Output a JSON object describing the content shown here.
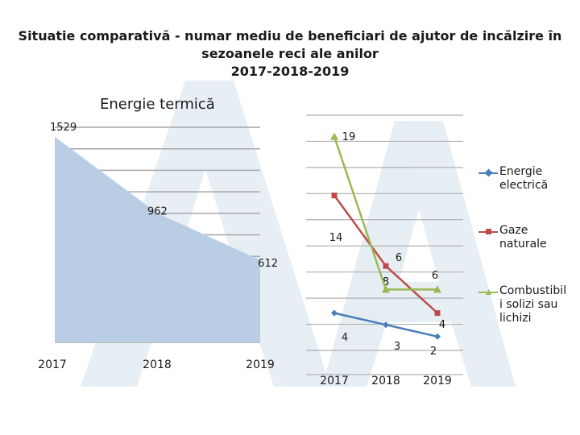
{
  "title_lines": [
    "Situatie comparativă - numar mediu de beneficiari de ajutor de incălzire în",
    "sezoanele reci ale anilor",
    "2017-2018-2019"
  ],
  "chart_data": [
    {
      "type": "area",
      "title": "Energie termică",
      "categories": [
        "2017",
        "2018",
        "2019"
      ],
      "series": [
        {
          "name": "Energie termică",
          "values": [
            1529,
            962,
            612
          ],
          "color": "#b9cde5"
        }
      ],
      "ylim": [
        0,
        1600
      ],
      "grid": true,
      "gridline_count": 11
    },
    {
      "type": "line",
      "categories": [
        "2017",
        "2018",
        "2019"
      ],
      "ylim": [
        0,
        20
      ],
      "grid": true,
      "legend_position": "right",
      "series": [
        {
          "name": "Energie electrică",
          "values": [
            4,
            3,
            2
          ],
          "labels": [
            "4",
            "3",
            "2"
          ],
          "color": "#4a7ebb",
          "marker": "diamond"
        },
        {
          "name": "Gaze naturale",
          "values": [
            14,
            8,
            4
          ],
          "labels": [
            "14",
            "8",
            "4"
          ],
          "color": "#be4b48",
          "marker": "square"
        },
        {
          "name": "Combustibil i solizi sau lichizi",
          "values": [
            19,
            6,
            6
          ],
          "labels": [
            "19",
            "6",
            "6"
          ],
          "color": "#98b954",
          "marker": "triangle"
        }
      ]
    }
  ],
  "legend": [
    {
      "lines": [
        "Energie",
        "electrică"
      ]
    },
    {
      "lines": [
        "Gaze",
        "naturale"
      ]
    },
    {
      "lines": [
        "Combustibil",
        "i solizi sau",
        "lichizi"
      ]
    }
  ]
}
